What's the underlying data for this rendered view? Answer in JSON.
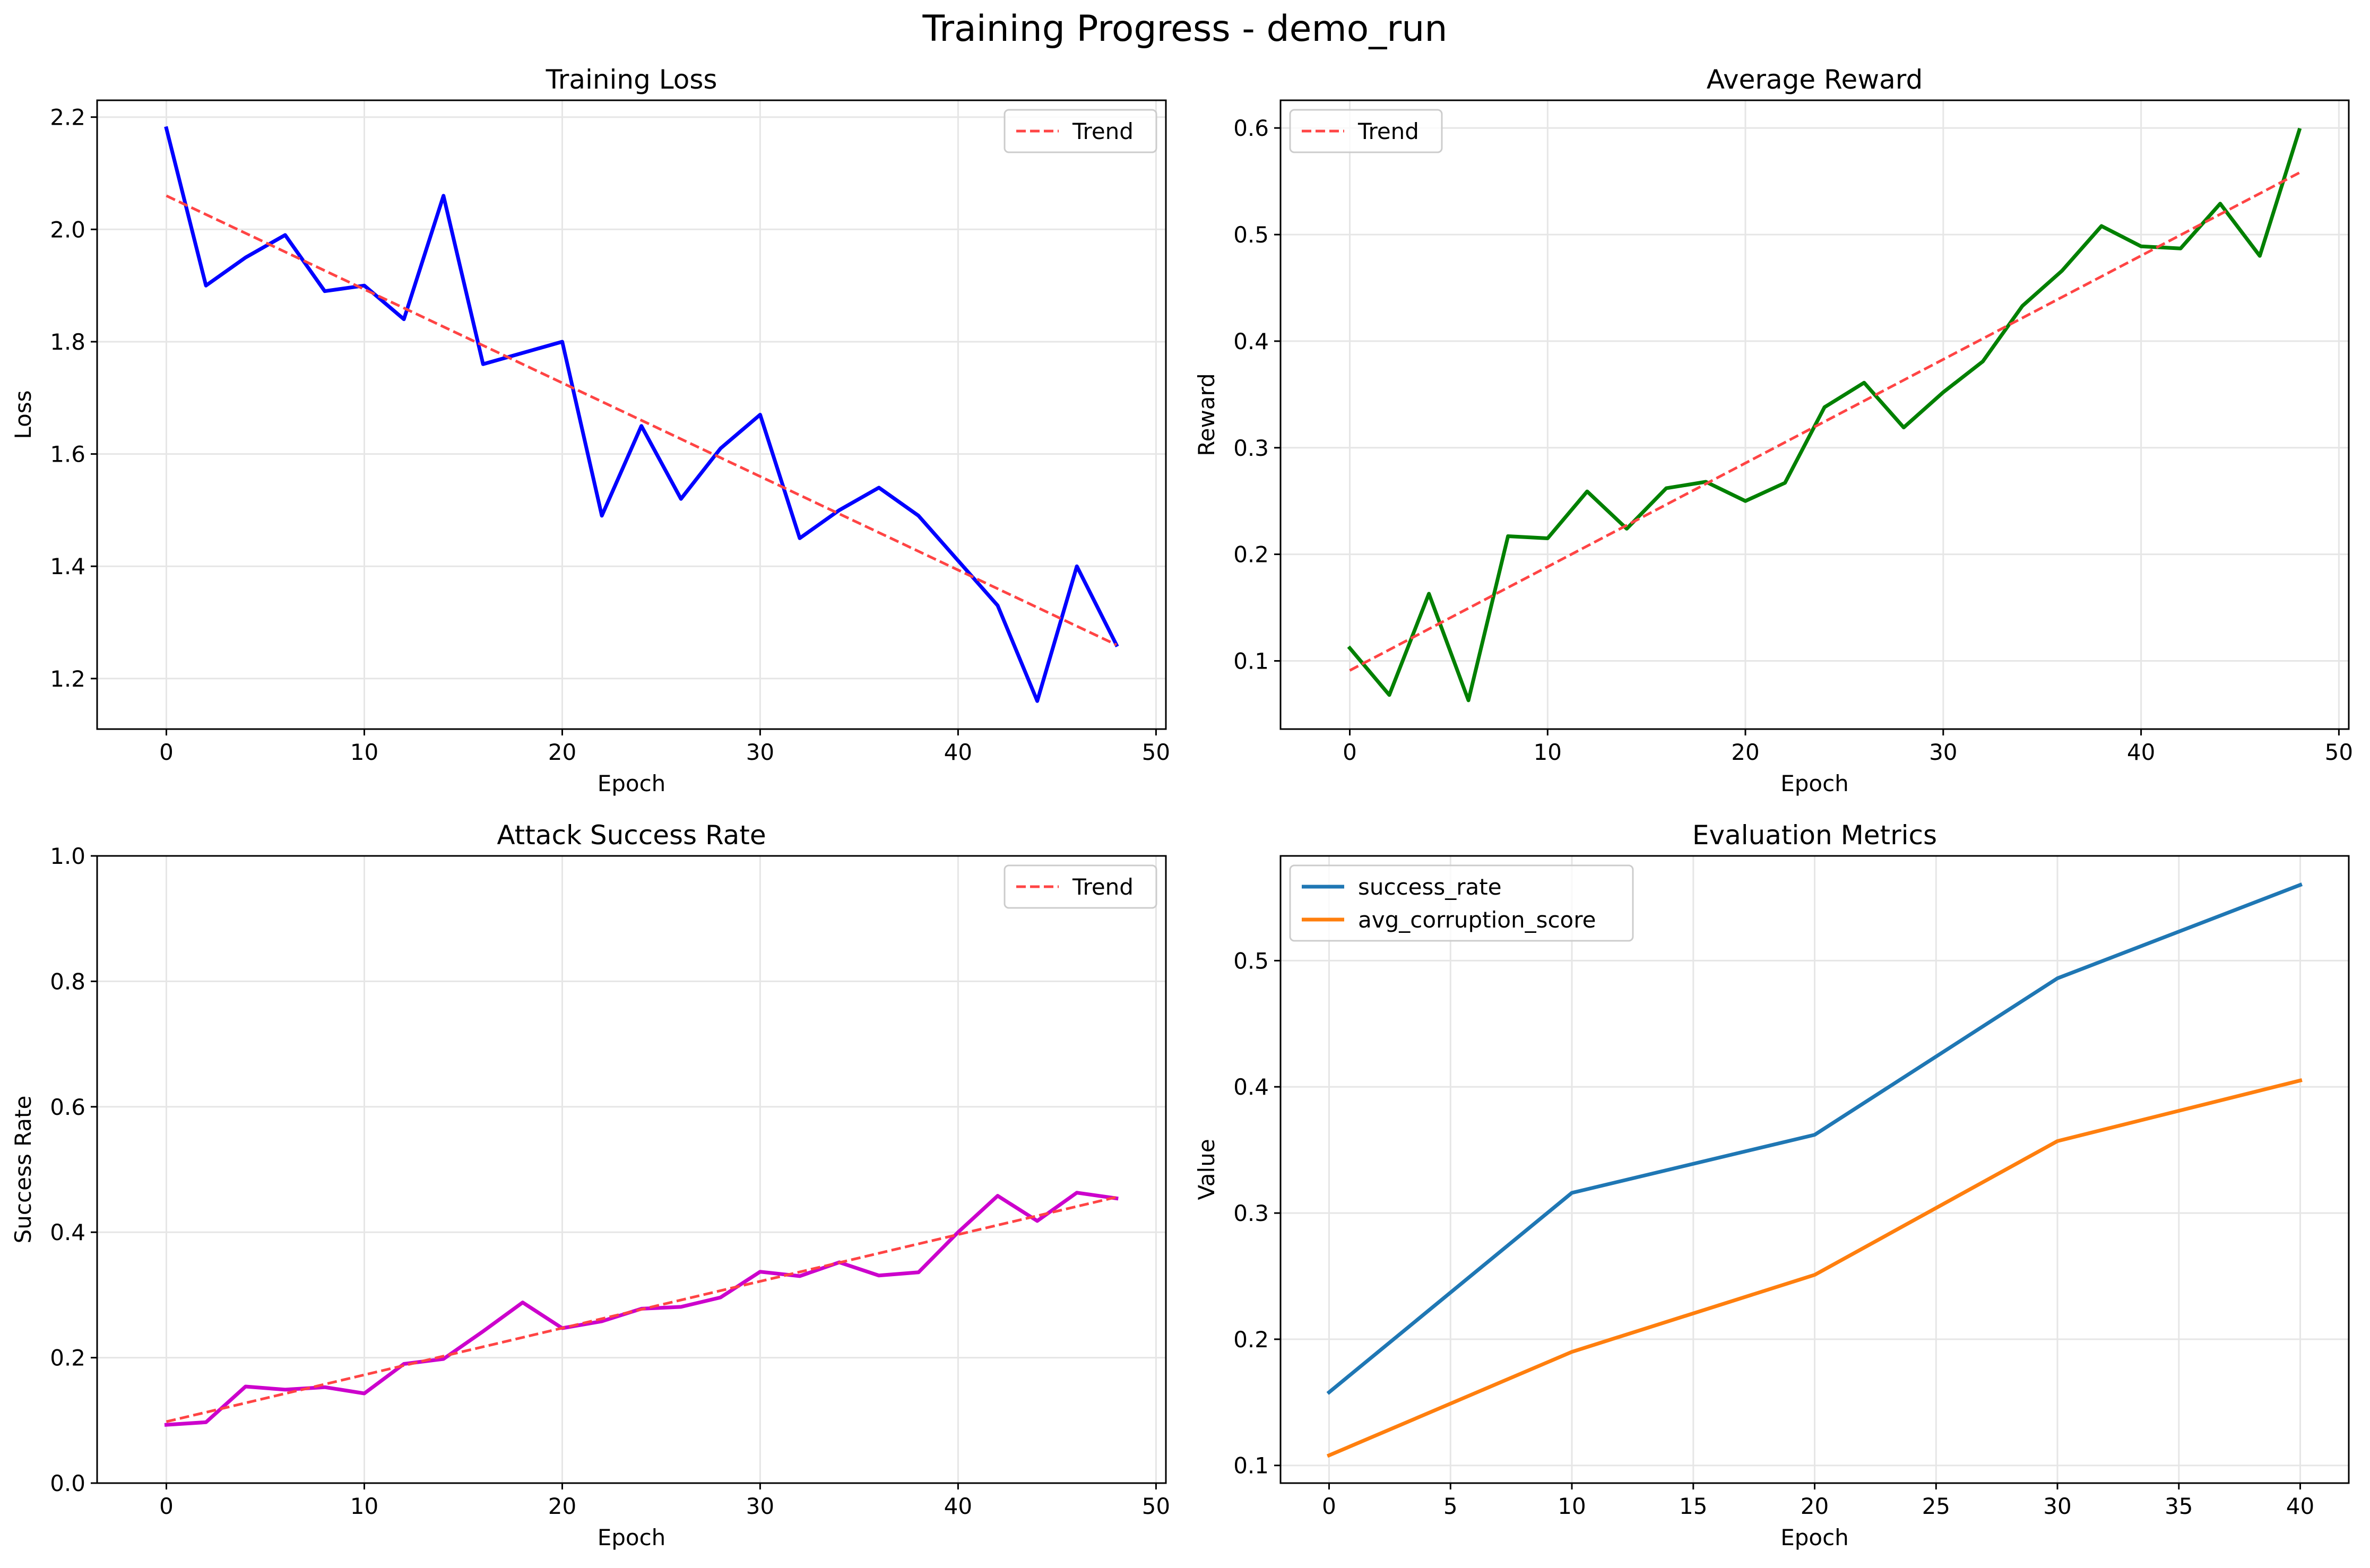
{
  "figure": {
    "suptitle": "Training Progress - demo_run",
    "grid_color": "#e6e6e6",
    "trend_color": "#ff4444"
  },
  "chart_data": [
    {
      "type": "line",
      "title": "Training Loss",
      "xlabel": "Epoch",
      "ylabel": "Loss",
      "xlim": [
        -3.5,
        50.5
      ],
      "ylim": [
        1.11,
        2.23
      ],
      "xticks": [
        0,
        10,
        20,
        30,
        40,
        50
      ],
      "yticks": [
        1.2,
        1.4,
        1.6,
        1.8,
        2.0,
        2.2
      ],
      "ytick_labels": [
        "1.2",
        "1.4",
        "1.6",
        "1.8",
        "2.0",
        "2.2"
      ],
      "legend": {
        "position": "upper right",
        "entries": [
          "Trend"
        ]
      },
      "grid": true,
      "series": [
        {
          "color": "#0000ff",
          "style": "solid",
          "x": [
            0,
            2,
            4,
            6,
            8,
            10,
            12,
            14,
            16,
            18,
            20,
            22,
            24,
            26,
            28,
            30,
            32,
            34,
            36,
            38,
            40,
            42,
            44,
            46,
            48
          ],
          "y": [
            2.18,
            1.9,
            1.95,
            1.99,
            1.89,
            1.9,
            1.84,
            2.06,
            1.76,
            1.78,
            1.8,
            1.49,
            1.65,
            1.52,
            1.61,
            1.67,
            1.45,
            1.5,
            1.54,
            1.49,
            1.41,
            1.33,
            1.16,
            1.4,
            1.26
          ]
        },
        {
          "name": "Trend",
          "color": "#ff4444",
          "style": "dashed",
          "x": [
            0,
            48
          ],
          "y": [
            2.06,
            1.26
          ]
        }
      ]
    },
    {
      "type": "line",
      "title": "Average Reward",
      "xlabel": "Epoch",
      "ylabel": "Reward",
      "xlim": [
        -3.5,
        50.5
      ],
      "ylim": [
        0.036,
        0.626
      ],
      "xticks": [
        0,
        10,
        20,
        30,
        40,
        50
      ],
      "yticks": [
        0.1,
        0.2,
        0.3,
        0.4,
        0.5,
        0.6
      ],
      "ytick_labels": [
        "0.1",
        "0.2",
        "0.3",
        "0.4",
        "0.5",
        "0.6"
      ],
      "legend": {
        "position": "upper left",
        "entries": [
          "Trend"
        ]
      },
      "grid": true,
      "series": [
        {
          "color": "#008000",
          "style": "solid",
          "x": [
            0,
            2,
            4,
            6,
            8,
            10,
            12,
            14,
            16,
            18,
            20,
            22,
            24,
            26,
            28,
            30,
            32,
            34,
            36,
            38,
            40,
            42,
            44,
            46,
            48
          ],
          "y": [
            0.112,
            0.068,
            0.163,
            0.063,
            0.217,
            0.215,
            0.259,
            0.224,
            0.262,
            0.268,
            0.25,
            0.267,
            0.338,
            0.361,
            0.319,
            0.352,
            0.381,
            0.433,
            0.466,
            0.508,
            0.489,
            0.487,
            0.529,
            0.48,
            0.598
          ]
        },
        {
          "name": "Trend",
          "color": "#ff4444",
          "style": "dashed",
          "x": [
            0,
            48
          ],
          "y": [
            0.091,
            0.558
          ]
        }
      ]
    },
    {
      "type": "line",
      "title": "Attack Success Rate",
      "xlabel": "Epoch",
      "ylabel": "Success Rate",
      "xlim": [
        -3.5,
        50.5
      ],
      "ylim": [
        0,
        1
      ],
      "xticks": [
        0,
        10,
        20,
        30,
        40,
        50
      ],
      "yticks": [
        0.0,
        0.2,
        0.4,
        0.6,
        0.8,
        1.0
      ],
      "ytick_labels": [
        "0.0",
        "0.2",
        "0.4",
        "0.6",
        "0.8",
        "1.0"
      ],
      "legend": {
        "position": "upper right",
        "entries": [
          "Trend"
        ]
      },
      "grid": true,
      "series": [
        {
          "color": "#cc00cc",
          "style": "solid",
          "x": [
            0,
            2,
            4,
            6,
            8,
            10,
            12,
            14,
            16,
            18,
            20,
            22,
            24,
            26,
            28,
            30,
            32,
            34,
            36,
            38,
            40,
            42,
            44,
            46,
            48
          ],
          "y": [
            0.093,
            0.097,
            0.154,
            0.149,
            0.153,
            0.143,
            0.19,
            0.198,
            0.242,
            0.288,
            0.247,
            0.258,
            0.278,
            0.281,
            0.296,
            0.337,
            0.33,
            0.352,
            0.331,
            0.336,
            0.4,
            0.458,
            0.418,
            0.463,
            0.454
          ]
        },
        {
          "name": "Trend",
          "color": "#ff4444",
          "style": "dashed",
          "x": [
            0,
            48
          ],
          "y": [
            0.098,
            0.456
          ]
        }
      ]
    },
    {
      "type": "line",
      "title": "Evaluation Metrics",
      "xlabel": "Epoch",
      "ylabel": "Value",
      "xlim": [
        -2.0,
        42.0
      ],
      "ylim": [
        0.086,
        0.583
      ],
      "xticks": [
        0,
        5,
        10,
        15,
        20,
        25,
        30,
        35,
        40
      ],
      "yticks": [
        0.1,
        0.2,
        0.3,
        0.4,
        0.5
      ],
      "ytick_labels": [
        "0.1",
        "0.2",
        "0.3",
        "0.4",
        "0.5"
      ],
      "legend": {
        "position": "upper left",
        "entries": [
          "success_rate",
          "avg_corruption_score"
        ]
      },
      "grid": true,
      "series": [
        {
          "name": "success_rate",
          "color": "#1f77b4",
          "style": "solid",
          "x": [
            0,
            10,
            20,
            30,
            40
          ],
          "y": [
            0.158,
            0.316,
            0.362,
            0.486,
            0.56
          ]
        },
        {
          "name": "avg_corruption_score",
          "color": "#ff7f0e",
          "style": "solid",
          "x": [
            0,
            10,
            20,
            30,
            40
          ],
          "y": [
            0.108,
            0.19,
            0.251,
            0.357,
            0.405
          ]
        }
      ]
    }
  ]
}
